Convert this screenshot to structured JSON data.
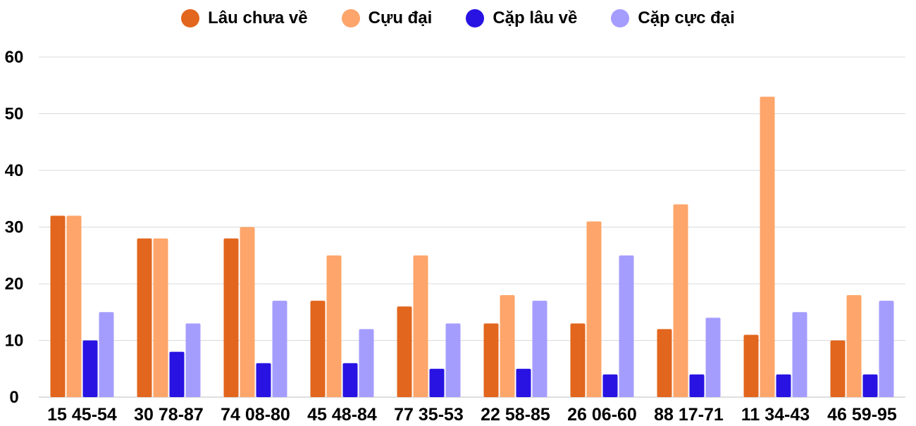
{
  "chart_data": {
    "type": "bar",
    "categories": [
      "15 45-54",
      "30 78-87",
      "74 08-80",
      "45 48-84",
      "77 35-53",
      "22 58-85",
      "26 06-60",
      "88 17-71",
      "11 34-43",
      "46 59-95"
    ],
    "series": [
      {
        "name": "Lâu chưa về",
        "color": "#e2661d",
        "values": [
          32,
          28,
          28,
          17,
          16,
          13,
          13,
          12,
          11,
          10
        ]
      },
      {
        "name": "Cựu đại",
        "color": "#fda56a",
        "values": [
          32,
          28,
          30,
          25,
          25,
          18,
          31,
          34,
          53,
          18
        ]
      },
      {
        "name": "Cặp lâu về",
        "color": "#2813e3",
        "values": [
          10,
          8,
          6,
          6,
          5,
          5,
          4,
          4,
          4,
          4
        ]
      },
      {
        "name": "Cặp cực đại",
        "color": "#a59dfd",
        "values": [
          15,
          13,
          17,
          12,
          13,
          17,
          25,
          14,
          15,
          17
        ]
      }
    ],
    "yticks": [
      "0",
      "10",
      "20",
      "30",
      "40",
      "50",
      "60"
    ],
    "ylim": [
      0,
      60
    ],
    "grid": true,
    "legend_position": "top-center"
  }
}
